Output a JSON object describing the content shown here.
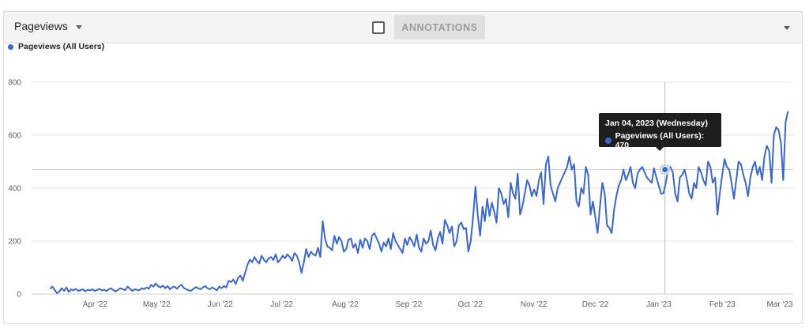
{
  "toolbar": {
    "metric_label": "Pageviews",
    "annotations_label": "ANNOTATIONS"
  },
  "legend": {
    "label": "Pageviews (All Users)"
  },
  "tooltip": {
    "date": "Jan 04, 2023 (Wednesday)",
    "series": "Pageviews (All Users)",
    "value": "470",
    "text": "Pageviews (All Users): 470"
  },
  "colors": {
    "series": "#3b67c6",
    "grid": "#e4e4e4",
    "toolbar_bg": "#f4f4f4"
  },
  "chart_data": {
    "type": "line",
    "start_date": "2022-03-10",
    "end_date": "2023-03-05",
    "xlabel": "",
    "ylabel": "",
    "ylim": [
      0,
      800
    ],
    "yticks": [
      0,
      200,
      400,
      600,
      800
    ],
    "month_ticks": [
      {
        "label": "Apr '22",
        "date": "2022-04-01"
      },
      {
        "label": "May '22",
        "date": "2022-05-01"
      },
      {
        "label": "Jun '22",
        "date": "2022-06-01"
      },
      {
        "label": "Jul '22",
        "date": "2022-07-01"
      },
      {
        "label": "Aug '22",
        "date": "2022-08-01"
      },
      {
        "label": "Sep '22",
        "date": "2022-09-01"
      },
      {
        "label": "Oct '22",
        "date": "2022-10-01"
      },
      {
        "label": "Nov '22",
        "date": "2022-11-01"
      },
      {
        "label": "Dec '22",
        "date": "2022-12-01"
      },
      {
        "label": "Jan '23",
        "date": "2023-01-01"
      },
      {
        "label": "Feb '23",
        "date": "2023-02-01"
      },
      {
        "label": "Mar '23",
        "date": "2023-03-01"
      }
    ],
    "grid": true,
    "legend_position": "top-left",
    "highlight": {
      "date": "2023-01-04",
      "value": 470
    },
    "series": [
      {
        "name": "Pageviews (All Users)",
        "values": [
          20,
          28,
          15,
          3,
          10,
          22,
          12,
          25,
          8,
          18,
          14,
          20,
          12,
          15,
          18,
          10,
          16,
          14,
          18,
          12,
          15,
          20,
          14,
          16,
          12,
          18,
          22,
          14,
          10,
          16,
          22,
          18,
          15,
          28,
          20,
          12,
          18,
          16,
          14,
          22,
          18,
          25,
          20,
          35,
          28,
          40,
          30,
          25,
          32,
          22,
          30,
          18,
          25,
          28,
          20,
          30,
          35,
          22,
          18,
          14,
          12,
          20,
          26,
          22,
          18,
          25,
          30,
          22,
          18,
          25,
          20,
          14,
          28,
          22,
          30,
          25,
          50,
          45,
          55,
          38,
          60,
          70,
          50,
          80,
          110,
          130,
          120,
          140,
          125,
          115,
          145,
          130,
          120,
          135,
          140,
          128,
          150,
          120,
          130,
          145,
          135,
          150,
          140,
          125,
          155,
          145,
          120,
          80,
          120,
          170,
          140,
          160,
          150,
          145,
          175,
          140,
          275,
          210,
          180,
          175,
          165,
          220,
          190,
          215,
          200,
          160,
          170,
          205,
          210,
          175,
          190,
          155,
          205,
          175,
          210,
          200,
          170,
          220,
          230,
          210,
          190,
          160,
          195,
          180,
          210,
          170,
          230,
          200,
          185,
          170,
          155,
          210,
          185,
          215,
          200,
          180,
          225,
          175,
          160,
          210,
          190,
          200,
          240,
          185,
          165,
          210,
          235,
          190,
          280,
          260,
          230,
          255,
          180,
          200,
          260,
          270,
          245,
          250,
          160,
          200,
          290,
          405,
          300,
          220,
          330,
          275,
          360,
          295,
          345,
          310,
          270,
          400,
          380,
          340,
          360,
          290,
          420,
          380,
          360,
          455,
          300,
          330,
          380,
          430,
          410,
          370,
          395,
          370,
          430,
          460,
          340,
          490,
          520,
          410,
          380,
          350,
          400,
          420,
          440,
          460,
          480,
          520,
          470,
          490,
          350,
          330,
          400,
          380,
          480,
          450,
          300,
          350,
          290,
          230,
          330,
          420,
          380,
          260,
          250,
          230,
          320,
          370,
          410,
          430,
          470,
          430,
          450,
          480,
          420,
          400,
          455,
          470,
          480,
          460,
          440,
          430,
          420,
          475,
          440,
          410,
          380,
          380,
          420,
          470,
          480,
          460,
          380,
          350,
          440,
          450,
          470,
          430,
          380,
          360,
          420,
          400,
          480,
          460,
          430,
          410,
          500,
          480,
          420,
          440,
          300,
          380,
          450,
          510,
          480,
          470,
          420,
          360,
          430,
          500,
          490,
          450,
          420,
          370,
          440,
          480,
          500,
          450,
          480,
          430,
          520,
          560,
          540,
          420,
          600,
          630,
          620,
          570,
          430,
          650,
          690
        ]
      }
    ]
  }
}
